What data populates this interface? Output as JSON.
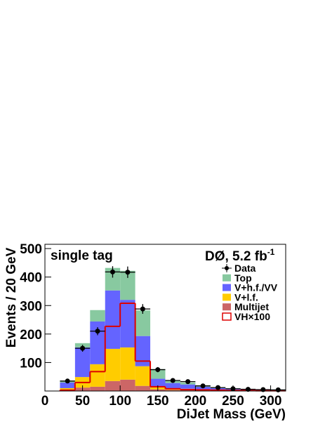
{
  "chart_data": {
    "type": "histogram",
    "annotation": "single tag",
    "experiment": "DØ, 5.2 fb",
    "experiment_superscript": "-1",
    "x_label": "DiJet Mass (GeV)",
    "y_label": "Events / 20 GeV",
    "bins": [
      20,
      40,
      60,
      80,
      100,
      120,
      140,
      160,
      180,
      200,
      220,
      240,
      260,
      280,
      300,
      320
    ],
    "xlim": [
      0,
      320
    ],
    "ylim": [
      0,
      515
    ],
    "xticks": [
      0,
      50,
      100,
      150,
      200,
      250,
      300
    ],
    "yticks": [
      100,
      200,
      300,
      400,
      500
    ],
    "legend": "upper right",
    "series": [
      {
        "name": "Data",
        "color": "#000000",
        "style": "points",
        "values": [
          35,
          150,
          210,
          418,
          417,
          288,
          75,
          37,
          33,
          18,
          12,
          8,
          6,
          5,
          4
        ],
        "errors": [
          6,
          12,
          14,
          20,
          20,
          17,
          9,
          6,
          6,
          4,
          3,
          3,
          2,
          2,
          2
        ]
      },
      {
        "name": "Top",
        "color": "#88c9a0",
        "style": "stack",
        "values": [
          6,
          15,
          40,
          79,
          102,
          90,
          34,
          8,
          7,
          5,
          3,
          2,
          2,
          1,
          1
        ]
      },
      {
        "name": "V+h.f./VV",
        "color": "#6464ff",
        "style": "stack",
        "values": [
          20,
          104,
          150,
          205,
          167,
          106,
          30,
          18,
          15,
          10,
          6,
          4,
          3,
          2,
          1
        ]
      },
      {
        "name": "V+l.f.",
        "color": "#ffcc00",
        "style": "stack",
        "values": [
          5,
          37,
          79,
          113,
          113,
          69,
          7,
          6,
          5,
          3,
          2,
          2,
          1,
          1,
          1
        ]
      },
      {
        "name": "Multijet",
        "color": "#cc6666",
        "style": "stack",
        "values": [
          5,
          12,
          15,
          35,
          40,
          18,
          6,
          4,
          3,
          2,
          2,
          1,
          1,
          1,
          1
        ]
      },
      {
        "name": "VH×100",
        "color": "#dd0000",
        "style": "step",
        "values": [
          3,
          30,
          68,
          227,
          308,
          105,
          15,
          8,
          5,
          4,
          3,
          2,
          2,
          1,
          1
        ]
      }
    ]
  }
}
